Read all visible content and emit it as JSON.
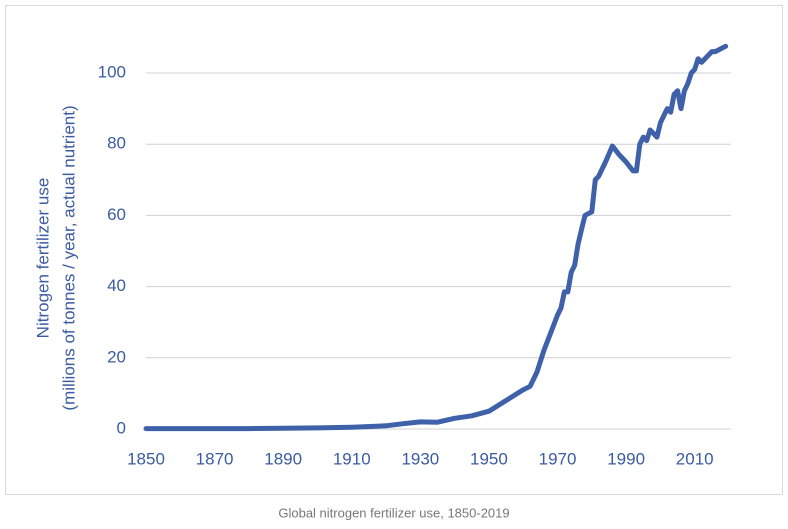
{
  "chart_data": {
    "type": "line",
    "caption": "Global nitrogen fertilizer use, 1850-2019",
    "ylabel": [
      "Nitrogen fertilizer use",
      "(millions of tonnes / year, actual nutrient)"
    ],
    "x": [
      1850,
      1860,
      1870,
      1880,
      1890,
      1900,
      1910,
      1920,
      1925,
      1930,
      1935,
      1940,
      1945,
      1950,
      1955,
      1960,
      1962,
      1964,
      1966,
      1968,
      1970,
      1971,
      1972,
      1973,
      1974,
      1975,
      1976,
      1977,
      1978,
      1979,
      1980,
      1981,
      1982,
      1984,
      1986,
      1988,
      1990,
      1992,
      1993,
      1994,
      1995,
      1996,
      1997,
      1998,
      1999,
      2000,
      2001,
      2002,
      2003,
      2004,
      2005,
      2006,
      2007,
      2008,
      2009,
      2010,
      2011,
      2012,
      2013,
      2014,
      2015,
      2016,
      2017,
      2018,
      2019
    ],
    "values": [
      0.1,
      0.1,
      0.1,
      0.1,
      0.2,
      0.3,
      0.5,
      0.9,
      1.5,
      2.0,
      1.9,
      3.0,
      3.7,
      5,
      8,
      11,
      12,
      16,
      22,
      27,
      32,
      34,
      38.5,
      38.5,
      44,
      46,
      52,
      56,
      60,
      60.5,
      61,
      70,
      71,
      75,
      79.5,
      77,
      75,
      72.5,
      72.5,
      80,
      82,
      81,
      84,
      83,
      82,
      86,
      88,
      90,
      89,
      94,
      95,
      90,
      95,
      97,
      100,
      101,
      104,
      103,
      104,
      105,
      106,
      106,
      106.5,
      107,
      107.5
    ],
    "color": "#3f61a9",
    "xlim": [
      1850,
      2020
    ],
    "xticks": [
      1850,
      1870,
      1890,
      1910,
      1930,
      1950,
      1970,
      1990,
      2010
    ],
    "ylim": [
      0,
      110
    ],
    "yticks": [
      0,
      20,
      40,
      60,
      80,
      100
    ],
    "grid": true
  }
}
